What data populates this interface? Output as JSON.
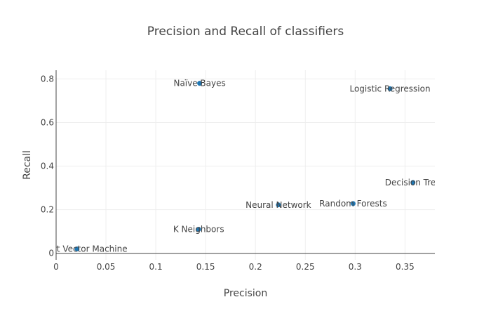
{
  "chart_data": {
    "type": "scatter",
    "title": "Precision and Recall of classifiers",
    "xlabel": "Precision",
    "ylabel": "Recall",
    "xlim": [
      0,
      0.38
    ],
    "ylim": [
      -0.03,
      0.84
    ],
    "xticks": [
      0,
      0.05,
      0.1,
      0.15,
      0.2,
      0.25,
      0.3,
      0.35
    ],
    "xtick_labels": [
      "0",
      "0.05",
      "0.1",
      "0.15",
      "0.2",
      "0.25",
      "0.3",
      "0.35"
    ],
    "yticks": [
      0,
      0.2,
      0.4,
      0.6,
      0.8
    ],
    "ytick_labels": [
      "0",
      "0.2",
      "0.4",
      "0.6",
      "0.8"
    ],
    "grid": true,
    "marker_color": "#1f77b4",
    "points": [
      {
        "label": "Naïve Bayes",
        "x": 0.144,
        "y": 0.78
      },
      {
        "label": "Logistic Regression",
        "x": 0.335,
        "y": 0.755
      },
      {
        "label": "Decision Tree",
        "x": 0.358,
        "y": 0.325
      },
      {
        "label": "Neural Network",
        "x": 0.223,
        "y": 0.222
      },
      {
        "label": "Random Forests",
        "x": 0.298,
        "y": 0.228
      },
      {
        "label": "K Neighbors",
        "x": 0.143,
        "y": 0.11
      },
      {
        "label": "Support Vector Machine",
        "x": 0.021,
        "y": 0.02
      }
    ]
  }
}
